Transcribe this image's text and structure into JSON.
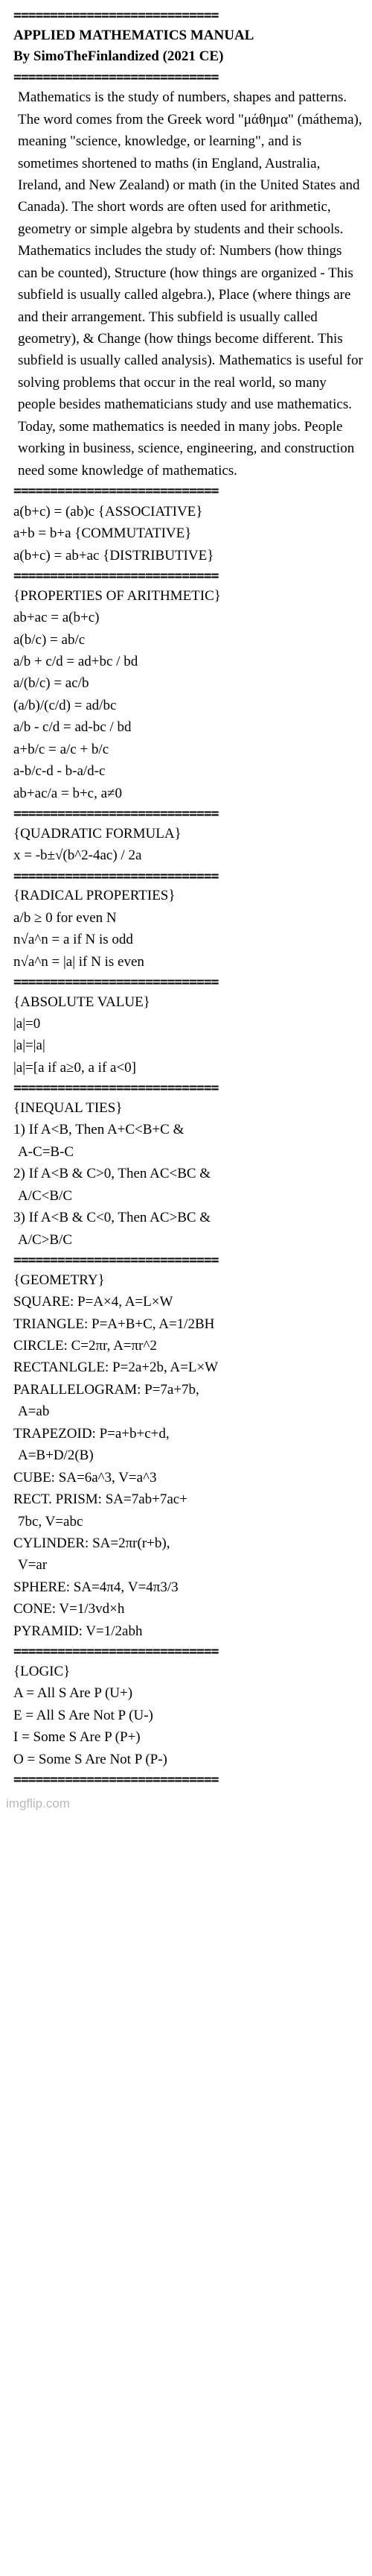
{
  "divider": "============================",
  "header": {
    "title": "APPLIED MATHEMATICS MANUAL",
    "byline": "By SimoTheFinlandized (2021 CE)"
  },
  "intro": "Mathematics is the study of numbers, shapes and patterns. The word comes from the Greek word \"μάθημα\" (máthema), meaning \"science, knowledge, or learning\", and is sometimes shortened to maths (in England, Australia, Ireland, and New Zealand) or math (in the United States and Canada). The short words are often used for arithmetic, geometry or simple algebra by students and their schools. Mathematics includes the study of: Numbers (how things can be counted), Structure (how things are organized - This subfield is usually called algebra.), Place (where things are and their arrangement. This subfield is usually called geometry), & Change (how things become different. This subfield is usually called analysis). Mathematics is useful for solving problems that occur in the real world, so many people besides mathematicians study and use mathematics. Today, some mathematics is needed in many jobs. People working in business, science, engineering, and construction need some knowledge of mathematics.",
  "sections": {
    "assoc": {
      "lines": [
        "a(b+c) = (ab)c {ASSOCIATIVE}",
        "a+b = b+a {COMMUTATIVE}",
        "a(b+c) = ab+ac {DISTRIBUTIVE}"
      ]
    },
    "arith": {
      "heading": "{PROPERTIES OF ARITHMETIC}",
      "lines": [
        "ab+ac = a(b+c)",
        "a(b/c) = ab/c",
        "a/b + c/d = ad+bc / bd",
        "a/(b/c) = ac/b",
        "(a/b)/(c/d) = ad/bc",
        "a/b - c/d = ad-bc / bd",
        "a+b/c = a/c + b/c",
        "a-b/c-d - b-a/d-c",
        "ab+ac/a = b+c, a≠0"
      ]
    },
    "quad": {
      "heading": "{QUADRATIC FORMULA}",
      "lines": [
        "x = -b±√(b^2-4ac) / 2a"
      ]
    },
    "radical": {
      "heading": "{RADICAL PROPERTIES}",
      "lines": [
        "a/b ≥ 0 for even N",
        "n√a^n = a if N is odd",
        "n√a^n = |a| if N is even"
      ]
    },
    "abs": {
      "heading": "{ABSOLUTE VALUE}",
      "lines": [
        "|a|=0",
        "|a|=|a|",
        "|a|=[a if a≥0, a if a<0]"
      ]
    },
    "ineq": {
      "heading": "{INEQUAL TIES}",
      "lines": [
        "1) If A<B, Then A+C<B+C &",
        " A-C=B-C",
        "2) If A<B & C>0, Then AC<BC &",
        " A/C<B/C",
        "3) If A<B & C<0, Then AC>BC &",
        " A/C>B/C"
      ]
    },
    "geom": {
      "heading": "{GEOMETRY}",
      "lines": [
        "SQUARE: P=A×4, A=L×W",
        "TRIANGLE: P=A+B+C, A=1/2BH",
        "CIRCLE: C=2πr, A=πr^2",
        "RECTANLGLE: P=2a+2b, A=L×W",
        "PARALLELOGRAM: P=7a+7b,",
        " A=ab",
        "TRAPEZOID: P=a+b+c+d,",
        " A=B+D/2(B)",
        "CUBE: SA=6a^3, V=a^3",
        "RECT. PRISM: SA=7ab+7ac+",
        " 7bc, V=abc",
        "CYLINDER: SA=2πr(r+b),",
        " V=ar",
        "SPHERE: SA=4π4, V=4π3/3",
        "CONE: V=1/3vd×h",
        "PYRAMID: V=1/2abh"
      ]
    },
    "logic": {
      "heading": "{LOGIC}",
      "lines": [
        "A = All S Are P (U+)",
        "E = All S Are Not P (U-)",
        "I = Some S Are P (P+)",
        "O = Some S Are Not P (P-)"
      ]
    }
  },
  "watermark": "imgflip.com"
}
